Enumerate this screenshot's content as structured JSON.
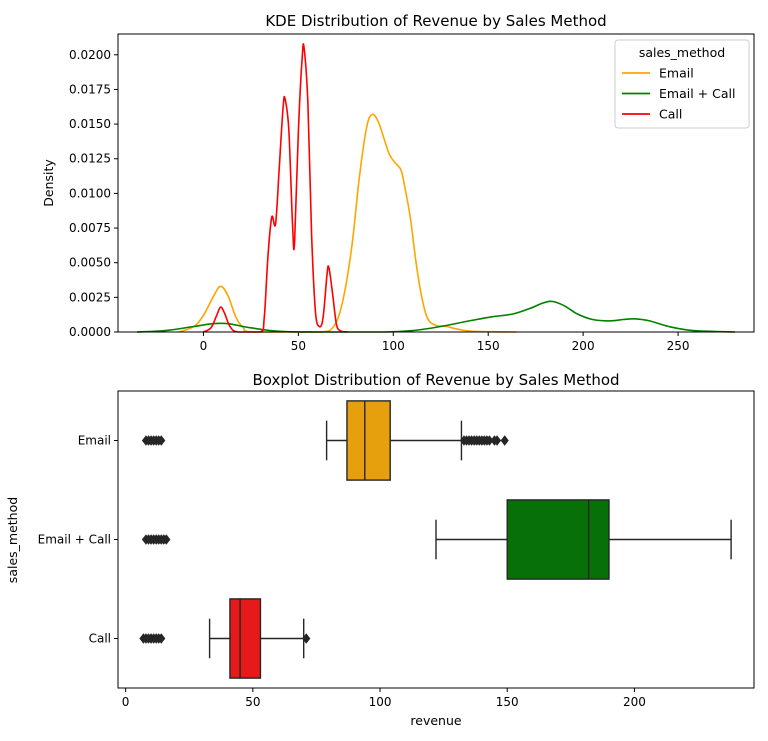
{
  "chart_data": [
    {
      "type": "kde",
      "title": "KDE Distribution of Revenue by Sales Method",
      "xlabel": "",
      "ylabel": "Density",
      "xlim": [
        -45,
        290
      ],
      "ylim": [
        0,
        0.0215
      ],
      "x_ticks": [
        0,
        50,
        100,
        150,
        200,
        250
      ],
      "y_ticks": [
        0.0,
        0.0025,
        0.005,
        0.0075,
        0.01,
        0.0125,
        0.015,
        0.0175,
        0.02
      ],
      "y_tick_labels": [
        "0.0000",
        "0.0025",
        "0.0050",
        "0.0075",
        "0.0100",
        "0.0125",
        "0.0150",
        "0.0175",
        "0.0200"
      ],
      "legend": {
        "title": "sales_method",
        "placement": "top-right"
      },
      "series": [
        {
          "name": "Email",
          "color": "#FFA500",
          "points": [
            [
              -13,
              0
            ],
            [
              -5,
              0.0004
            ],
            [
              0,
              0.0012
            ],
            [
              5,
              0.0025
            ],
            [
              9,
              0.0033
            ],
            [
              13,
              0.0026
            ],
            [
              17,
              0.0011
            ],
            [
              21,
              0.0003
            ],
            [
              26,
              0
            ],
            [
              60,
              0
            ],
            [
              68,
              0.0003
            ],
            [
              73,
              0.002
            ],
            [
              78,
              0.006
            ],
            [
              82,
              0.011
            ],
            [
              86,
              0.0148
            ],
            [
              89,
              0.0157
            ],
            [
              92,
              0.0152
            ],
            [
              95,
              0.014
            ],
            [
              98,
              0.0128
            ],
            [
              101,
              0.0122
            ],
            [
              104,
              0.0117
            ],
            [
              106,
              0.0105
            ],
            [
              109,
              0.0082
            ],
            [
              112,
              0.005
            ],
            [
              115,
              0.0025
            ],
            [
              118,
              0.001
            ],
            [
              122,
              0.0005
            ],
            [
              128,
              0.0004
            ],
            [
              134,
              0.0002
            ],
            [
              142,
              5e-05
            ],
            [
              165,
              0
            ]
          ]
        },
        {
          "name": "Email + Call",
          "color": "#008000",
          "points": [
            [
              -35,
              0
            ],
            [
              -20,
              0.0001
            ],
            [
              -5,
              0.0004
            ],
            [
              5,
              0.0006
            ],
            [
              13,
              0.0006
            ],
            [
              25,
              0.0003
            ],
            [
              40,
              5e-05
            ],
            [
              60,
              0
            ],
            [
              95,
              0
            ],
            [
              110,
              0.0001
            ],
            [
              125,
              0.0004
            ],
            [
              140,
              0.0008
            ],
            [
              152,
              0.0011
            ],
            [
              163,
              0.0013
            ],
            [
              172,
              0.0017
            ],
            [
              179,
              0.0021
            ],
            [
              184,
              0.0022
            ],
            [
              190,
              0.0019
            ],
            [
              197,
              0.0013
            ],
            [
              205,
              0.0009
            ],
            [
              214,
              0.0008
            ],
            [
              221,
              0.0009
            ],
            [
              227,
              0.00095
            ],
            [
              235,
              0.0008
            ],
            [
              245,
              0.0004
            ],
            [
              258,
              0.0001
            ],
            [
              280,
              0
            ]
          ]
        },
        {
          "name": "Call",
          "color": "#FF0000",
          "points": [
            [
              0,
              0
            ],
            [
              4,
              0.0003
            ],
            [
              7,
              0.0012
            ],
            [
              9,
              0.0018
            ],
            [
              11,
              0.0014
            ],
            [
              14,
              0.0004
            ],
            [
              18,
              0
            ],
            [
              30,
              0
            ],
            [
              32,
              0.001
            ],
            [
              34,
              0.0055
            ],
            [
              36,
              0.0083
            ],
            [
              38,
              0.0078
            ],
            [
              40,
              0.012
            ],
            [
              42,
              0.0163
            ],
            [
              43,
              0.0168
            ],
            [
              45,
              0.0145
            ],
            [
              47,
              0.0075
            ],
            [
              48,
              0.0065
            ],
            [
              50,
              0.0145
            ],
            [
              52,
              0.0198
            ],
            [
              53,
              0.0205
            ],
            [
              55,
              0.0165
            ],
            [
              57,
              0.007
            ],
            [
              59,
              0.0015
            ],
            [
              61,
              0.0004
            ],
            [
              63,
              0.001
            ],
            [
              65,
              0.004
            ],
            [
              66,
              0.0047
            ],
            [
              68,
              0.0028
            ],
            [
              70,
              0.0006
            ],
            [
              72,
              0.0001
            ],
            [
              76,
              0
            ]
          ]
        }
      ]
    },
    {
      "type": "boxplot",
      "title": "Boxplot Distribution of Revenue by Sales Method",
      "xlabel": "revenue",
      "ylabel": "sales_method",
      "xlim": [
        -3,
        247
      ],
      "x_ticks": [
        0,
        50,
        100,
        150,
        200
      ],
      "categories": [
        "Email",
        "Email + Call",
        "Call"
      ],
      "boxes": [
        {
          "name": "Email",
          "color": "#E69F0D",
          "whisker_low": 79,
          "q1": 87,
          "median": 94,
          "q3": 104,
          "whisker_high": 132,
          "low_outliers": [
            8,
            9,
            10,
            11,
            12,
            13,
            14
          ],
          "high_outliers": [
            133,
            134,
            135,
            136,
            137,
            138,
            139,
            140,
            141,
            142,
            143,
            145,
            146,
            149
          ]
        },
        {
          "name": "Email + Call",
          "color": "#087008",
          "whisker_low": 122,
          "q1": 150,
          "median": 182,
          "q3": 190,
          "whisker_high": 238,
          "low_outliers": [
            8,
            9,
            10,
            11,
            12,
            13,
            14,
            15,
            16
          ],
          "high_outliers": []
        },
        {
          "name": "Call",
          "color": "#E61A1A",
          "whisker_low": 33,
          "q1": 41,
          "median": 45,
          "q3": 53,
          "whisker_high": 70,
          "low_outliers": [
            7,
            8,
            9,
            10,
            11,
            12,
            13,
            14
          ],
          "high_outliers": [
            71
          ]
        }
      ]
    }
  ]
}
